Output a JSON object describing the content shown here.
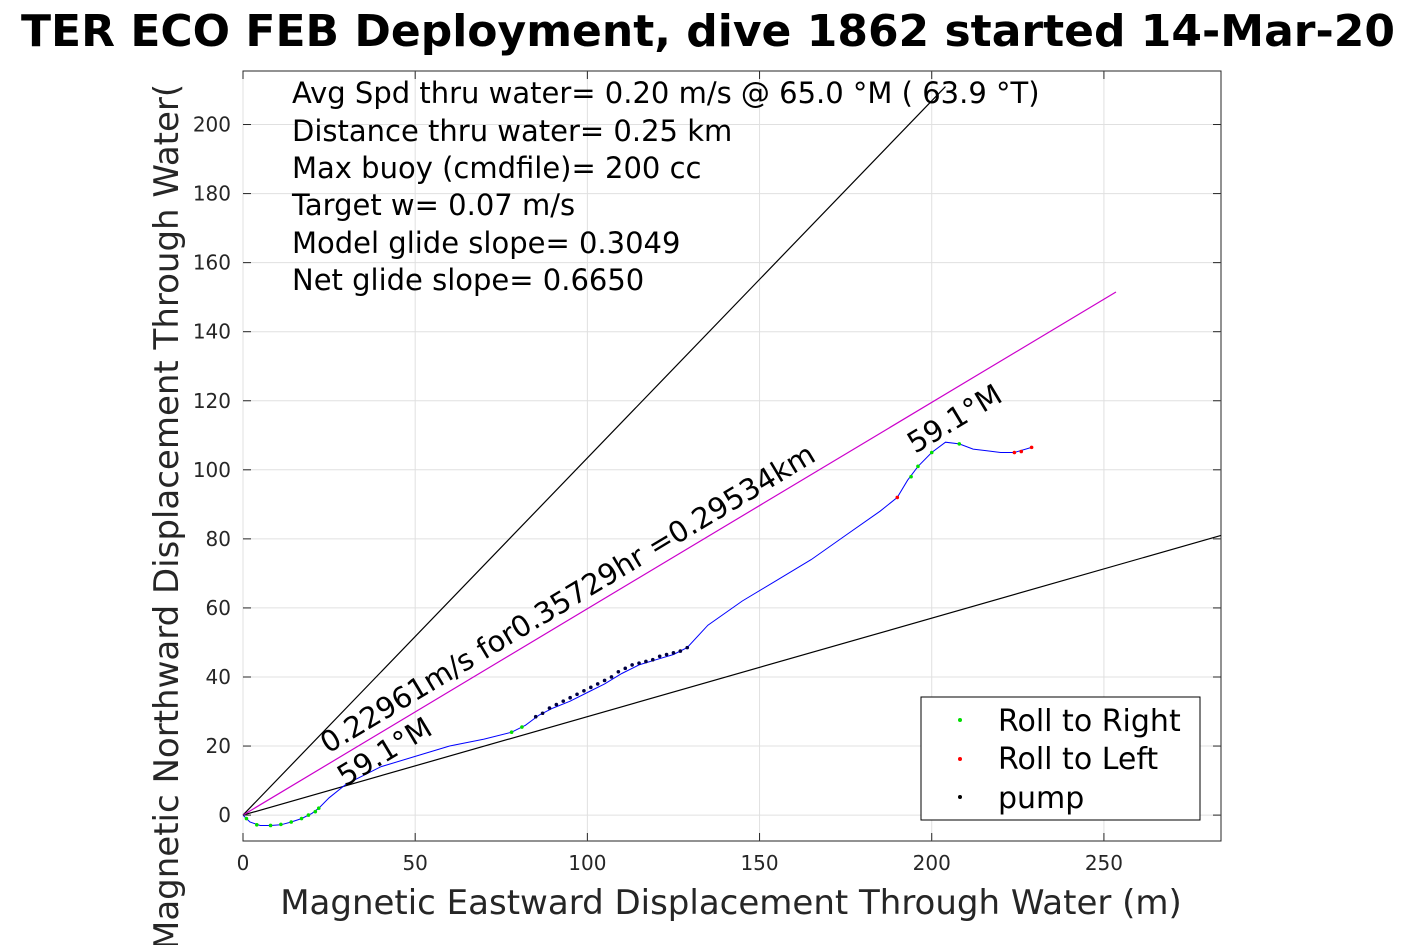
{
  "chart_data": {
    "type": "scatter",
    "title": "TER ECO FEB Deployment, dive 1862 started 14-Mar-20",
    "xlabel": "Magnetic Eastward Displacement Through Water (m)",
    "ylabel": "Magnetic Northward Displacement Through Water(",
    "xlim": [
      0,
      284
    ],
    "ylim": [
      -7.5,
      215.5
    ],
    "xticks": [
      "0",
      "50",
      "100",
      "150",
      "200",
      "250"
    ],
    "yticks": [
      "0",
      "20",
      "40",
      "60",
      "80",
      "100",
      "120",
      "140",
      "160",
      "180",
      "200"
    ],
    "xtick_values": [
      0,
      50,
      100,
      150,
      200,
      250
    ],
    "ytick_values": [
      0,
      20,
      40,
      60,
      80,
      100,
      120,
      140,
      160,
      180,
      200
    ],
    "grid": true,
    "info_lines": [
      "Avg Spd thru water=  0.20 m/s @  65.0 °M ( 63.9 °T)",
      "Distance thru water=  0.25 km",
      "Max buoy (cmdfile)= 200 cc",
      "Target w= 0.07 m/s",
      "Model glide slope= 0.3049",
      "Net glide slope= 0.6650"
    ],
    "annotations": {
      "track_label": "0.22961m/s for0.35729hr =0.29534km",
      "heading_upper": "59.1°M",
      "heading_lower": "59.1°M"
    },
    "lines": [
      {
        "name": "glide-cone-upper",
        "color": "#000000",
        "x": [
          0,
          204
        ],
        "y": [
          0,
          211
        ]
      },
      {
        "name": "glide-cone-lower",
        "color": "#000000",
        "x": [
          0,
          284
        ],
        "y": [
          0,
          81
        ]
      },
      {
        "name": "net-heading",
        "color": "#cc00cc",
        "x": [
          0,
          253.5
        ],
        "y": [
          0,
          151.5
        ]
      }
    ],
    "track": {
      "color": "#0000ff",
      "x": [
        0,
        2,
        5,
        8,
        11,
        14,
        17,
        20,
        22,
        25,
        30,
        40,
        50,
        60,
        70,
        78,
        82,
        86,
        90,
        95,
        100,
        105,
        110,
        115,
        120,
        125,
        129,
        135,
        145,
        155,
        165,
        175,
        185,
        190,
        193,
        196,
        200,
        204,
        208,
        212,
        216,
        220,
        224,
        229
      ],
      "y": [
        0,
        -2,
        -3,
        -3,
        -2.8,
        -2,
        -1,
        0.5,
        2,
        5,
        9,
        14,
        17,
        20,
        22,
        24,
        26,
        29,
        31,
        33,
        35.5,
        38,
        41,
        43.5,
        45,
        46.5,
        48.5,
        55,
        62,
        68,
        74,
        81,
        88,
        92,
        97,
        101,
        105,
        108,
        107.5,
        106,
        105.5,
        105,
        105,
        106.5
      ]
    },
    "series": [
      {
        "name": "Roll to Right",
        "color": "#00dd00",
        "x": [
          1,
          4,
          8,
          11,
          14,
          17,
          19,
          21,
          22,
          78,
          81,
          194,
          196,
          200,
          208
        ],
        "y": [
          -1,
          -2.8,
          -3,
          -2.7,
          -2,
          -1,
          0,
          1,
          2,
          24,
          25.5,
          98,
          101,
          105,
          107.5
        ]
      },
      {
        "name": "Roll to Left",
        "color": "#ff0000",
        "x": [
          190,
          224,
          226,
          229
        ],
        "y": [
          92,
          105,
          105.3,
          106.5
        ]
      },
      {
        "name": "pump",
        "color": "#000040",
        "x": [
          85,
          87,
          89,
          91,
          93,
          95,
          97,
          99,
          101,
          103,
          105,
          107,
          109,
          111,
          113,
          115,
          117,
          119,
          121,
          123,
          125,
          127,
          129
        ],
        "y": [
          28.5,
          29.5,
          31,
          32,
          33,
          34,
          35,
          36,
          37,
          38,
          39,
          40,
          41.5,
          42.5,
          43.5,
          44,
          44.5,
          45,
          46,
          46.5,
          47,
          47.5,
          48.5
        ]
      }
    ],
    "legend_position": "bottom-right"
  }
}
